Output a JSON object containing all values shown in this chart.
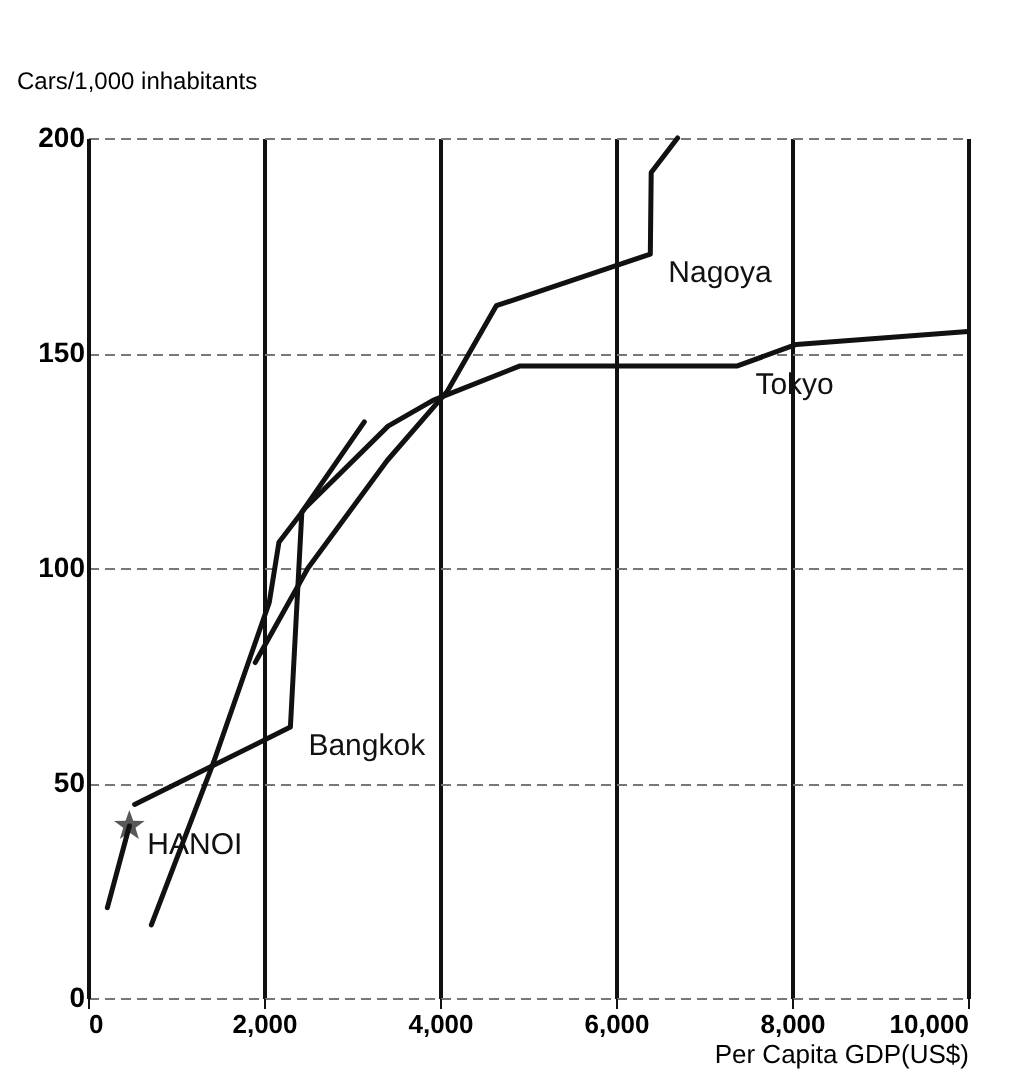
{
  "chart_data": {
    "type": "line",
    "xlabel": "Per Capita GDP(US$)",
    "ylabel": "Cars/1,000 inhabitants",
    "xlim": [
      0,
      10000
    ],
    "xticks": [
      0,
      {
        "value": 2000,
        "label": "2,000"
      },
      {
        "value": 4000,
        "label": "4,000"
      },
      {
        "value": 6000,
        "label": "6,000"
      },
      {
        "value": 8000,
        "label": "8,000"
      },
      {
        "value": 10000,
        "label": "10,000"
      }
    ],
    "ylim": [
      0,
      200
    ],
    "yticks": [
      0,
      50,
      100,
      150,
      200
    ],
    "grid": true,
    "marker": "none",
    "series": [
      {
        "name": "Nagoya",
        "color": "#111111",
        "x": [
          1900,
          2500,
          3400,
          4080,
          4640,
          6390,
          6400,
          6700
        ],
        "values": [
          78,
          100,
          125,
          141,
          161,
          173,
          192,
          200
        ]
      },
      {
        "name": "Tokyo",
        "color": "#111111",
        "x": [
          720,
          1430,
          2060,
          2170,
          2470,
          3410,
          3920,
          4910,
          7380,
          8050,
          10000
        ],
        "values": [
          17,
          55,
          92,
          106,
          114,
          133,
          139,
          147,
          147,
          152,
          155
        ]
      },
      {
        "name": "Bangkok",
        "color": "#111111",
        "x": [
          530,
          2300,
          2430,
          3140
        ],
        "values": [
          45,
          63,
          113,
          134
        ]
      },
      {
        "color": "#111111",
        "x": [
          220,
          470
        ],
        "values": [
          21,
          40
        ]
      },
      {
        "name": "HANOI",
        "type": "scatter",
        "marker": "star",
        "color": "#111111",
        "x": [
          470
        ],
        "values": [
          40
        ]
      }
    ]
  }
}
